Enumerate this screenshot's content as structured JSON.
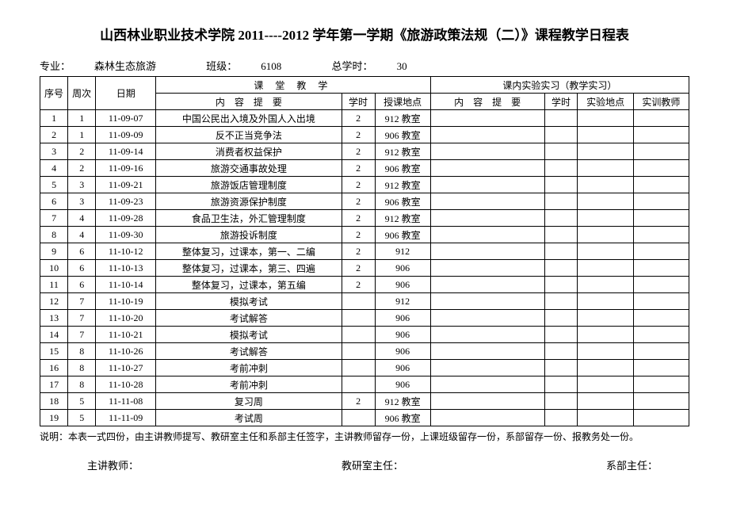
{
  "title": "山西林业职业技术学院 2011----2012 学年第一学期《旅游政策法规（二）》课程教学日程表",
  "meta": {
    "major_label": "专业：",
    "major_value": "森林生态旅游",
    "class_label": "班级：",
    "class_value": "6108",
    "hours_label": "总学时：",
    "hours_value": "30"
  },
  "headers": {
    "seq": "序号",
    "week": "周次",
    "date": "日期",
    "classroom_teaching": "课 堂 教 学",
    "lab_practice": "课内实验实习（教学实习）",
    "content": "内　容　提　要",
    "hours": "学时",
    "place": "授课地点",
    "lab_content": "内　容　提　要",
    "lab_hours": "学时",
    "lab_place": "实验地点",
    "lab_teacher": "实训教师"
  },
  "rows": [
    {
      "seq": "1",
      "week": "1",
      "date": "11-09-07",
      "content": "中国公民出入境及外国人入出境",
      "hours": "2",
      "place": "912 教室"
    },
    {
      "seq": "2",
      "week": "1",
      "date": "11-09-09",
      "content": "反不正当竞争法",
      "hours": "2",
      "place": "906 教室"
    },
    {
      "seq": "3",
      "week": "2",
      "date": "11-09-14",
      "content": "消费者权益保护",
      "hours": "2",
      "place": "912 教室"
    },
    {
      "seq": "4",
      "week": "2",
      "date": "11-09-16",
      "content": "旅游交通事故处理",
      "hours": "2",
      "place": "906 教室"
    },
    {
      "seq": "5",
      "week": "3",
      "date": "11-09-21",
      "content": "旅游饭店管理制度",
      "hours": "2",
      "place": "912 教室"
    },
    {
      "seq": "6",
      "week": "3",
      "date": "11-09-23",
      "content": "旅游资源保护制度",
      "hours": "2",
      "place": "906 教室"
    },
    {
      "seq": "7",
      "week": "4",
      "date": "11-09-28",
      "content": "食品卫生法，外汇管理制度",
      "hours": "2",
      "place": "912 教室"
    },
    {
      "seq": "8",
      "week": "4",
      "date": "11-09-30",
      "content": "旅游投诉制度",
      "hours": "2",
      "place": "906 教室"
    },
    {
      "seq": "9",
      "week": "6",
      "date": "11-10-12",
      "content": "整体复习，过课本，第一、二编",
      "hours": "2",
      "place": "912"
    },
    {
      "seq": "10",
      "week": "6",
      "date": "11-10-13",
      "content": "整体复习，过课本，第三、四遍",
      "hours": "2",
      "place": "906"
    },
    {
      "seq": "11",
      "week": "6",
      "date": "11-10-14",
      "content": "整体复习，过课本，第五编",
      "hours": "2",
      "place": "906"
    },
    {
      "seq": "12",
      "week": "7",
      "date": "11-10-19",
      "content": "模拟考试",
      "hours": "",
      "place": "912"
    },
    {
      "seq": "13",
      "week": "7",
      "date": "11-10-20",
      "content": "考试解答",
      "hours": "",
      "place": "906"
    },
    {
      "seq": "14",
      "week": "7",
      "date": "11-10-21",
      "content": "模拟考试",
      "hours": "",
      "place": "906"
    },
    {
      "seq": "15",
      "week": "8",
      "date": "11-10-26",
      "content": "考试解答",
      "hours": "",
      "place": "906"
    },
    {
      "seq": "16",
      "week": "8",
      "date": "11-10-27",
      "content": "考前冲刺",
      "hours": "",
      "place": "906"
    },
    {
      "seq": "17",
      "week": "8",
      "date": "11-10-28",
      "content": "考前冲刺",
      "hours": "",
      "place": "906"
    },
    {
      "seq": "18",
      "week": "5",
      "date": "11-11-08",
      "content": "复习周",
      "hours": "2",
      "place": "912 教室"
    },
    {
      "seq": "19",
      "week": "5",
      "date": "11-11-09",
      "content": "考试周",
      "hours": "",
      "place": "906 教室"
    }
  ],
  "note": "说明：本表一式四份，由主讲教师提写、教研室主任和系部主任签字，主讲教师留存一份，上课班级留存一份，系部留存一份、报教务处一份。",
  "signatures": {
    "teacher": "主讲教师：",
    "office": "教研室主任：",
    "dept": "系部主任："
  }
}
